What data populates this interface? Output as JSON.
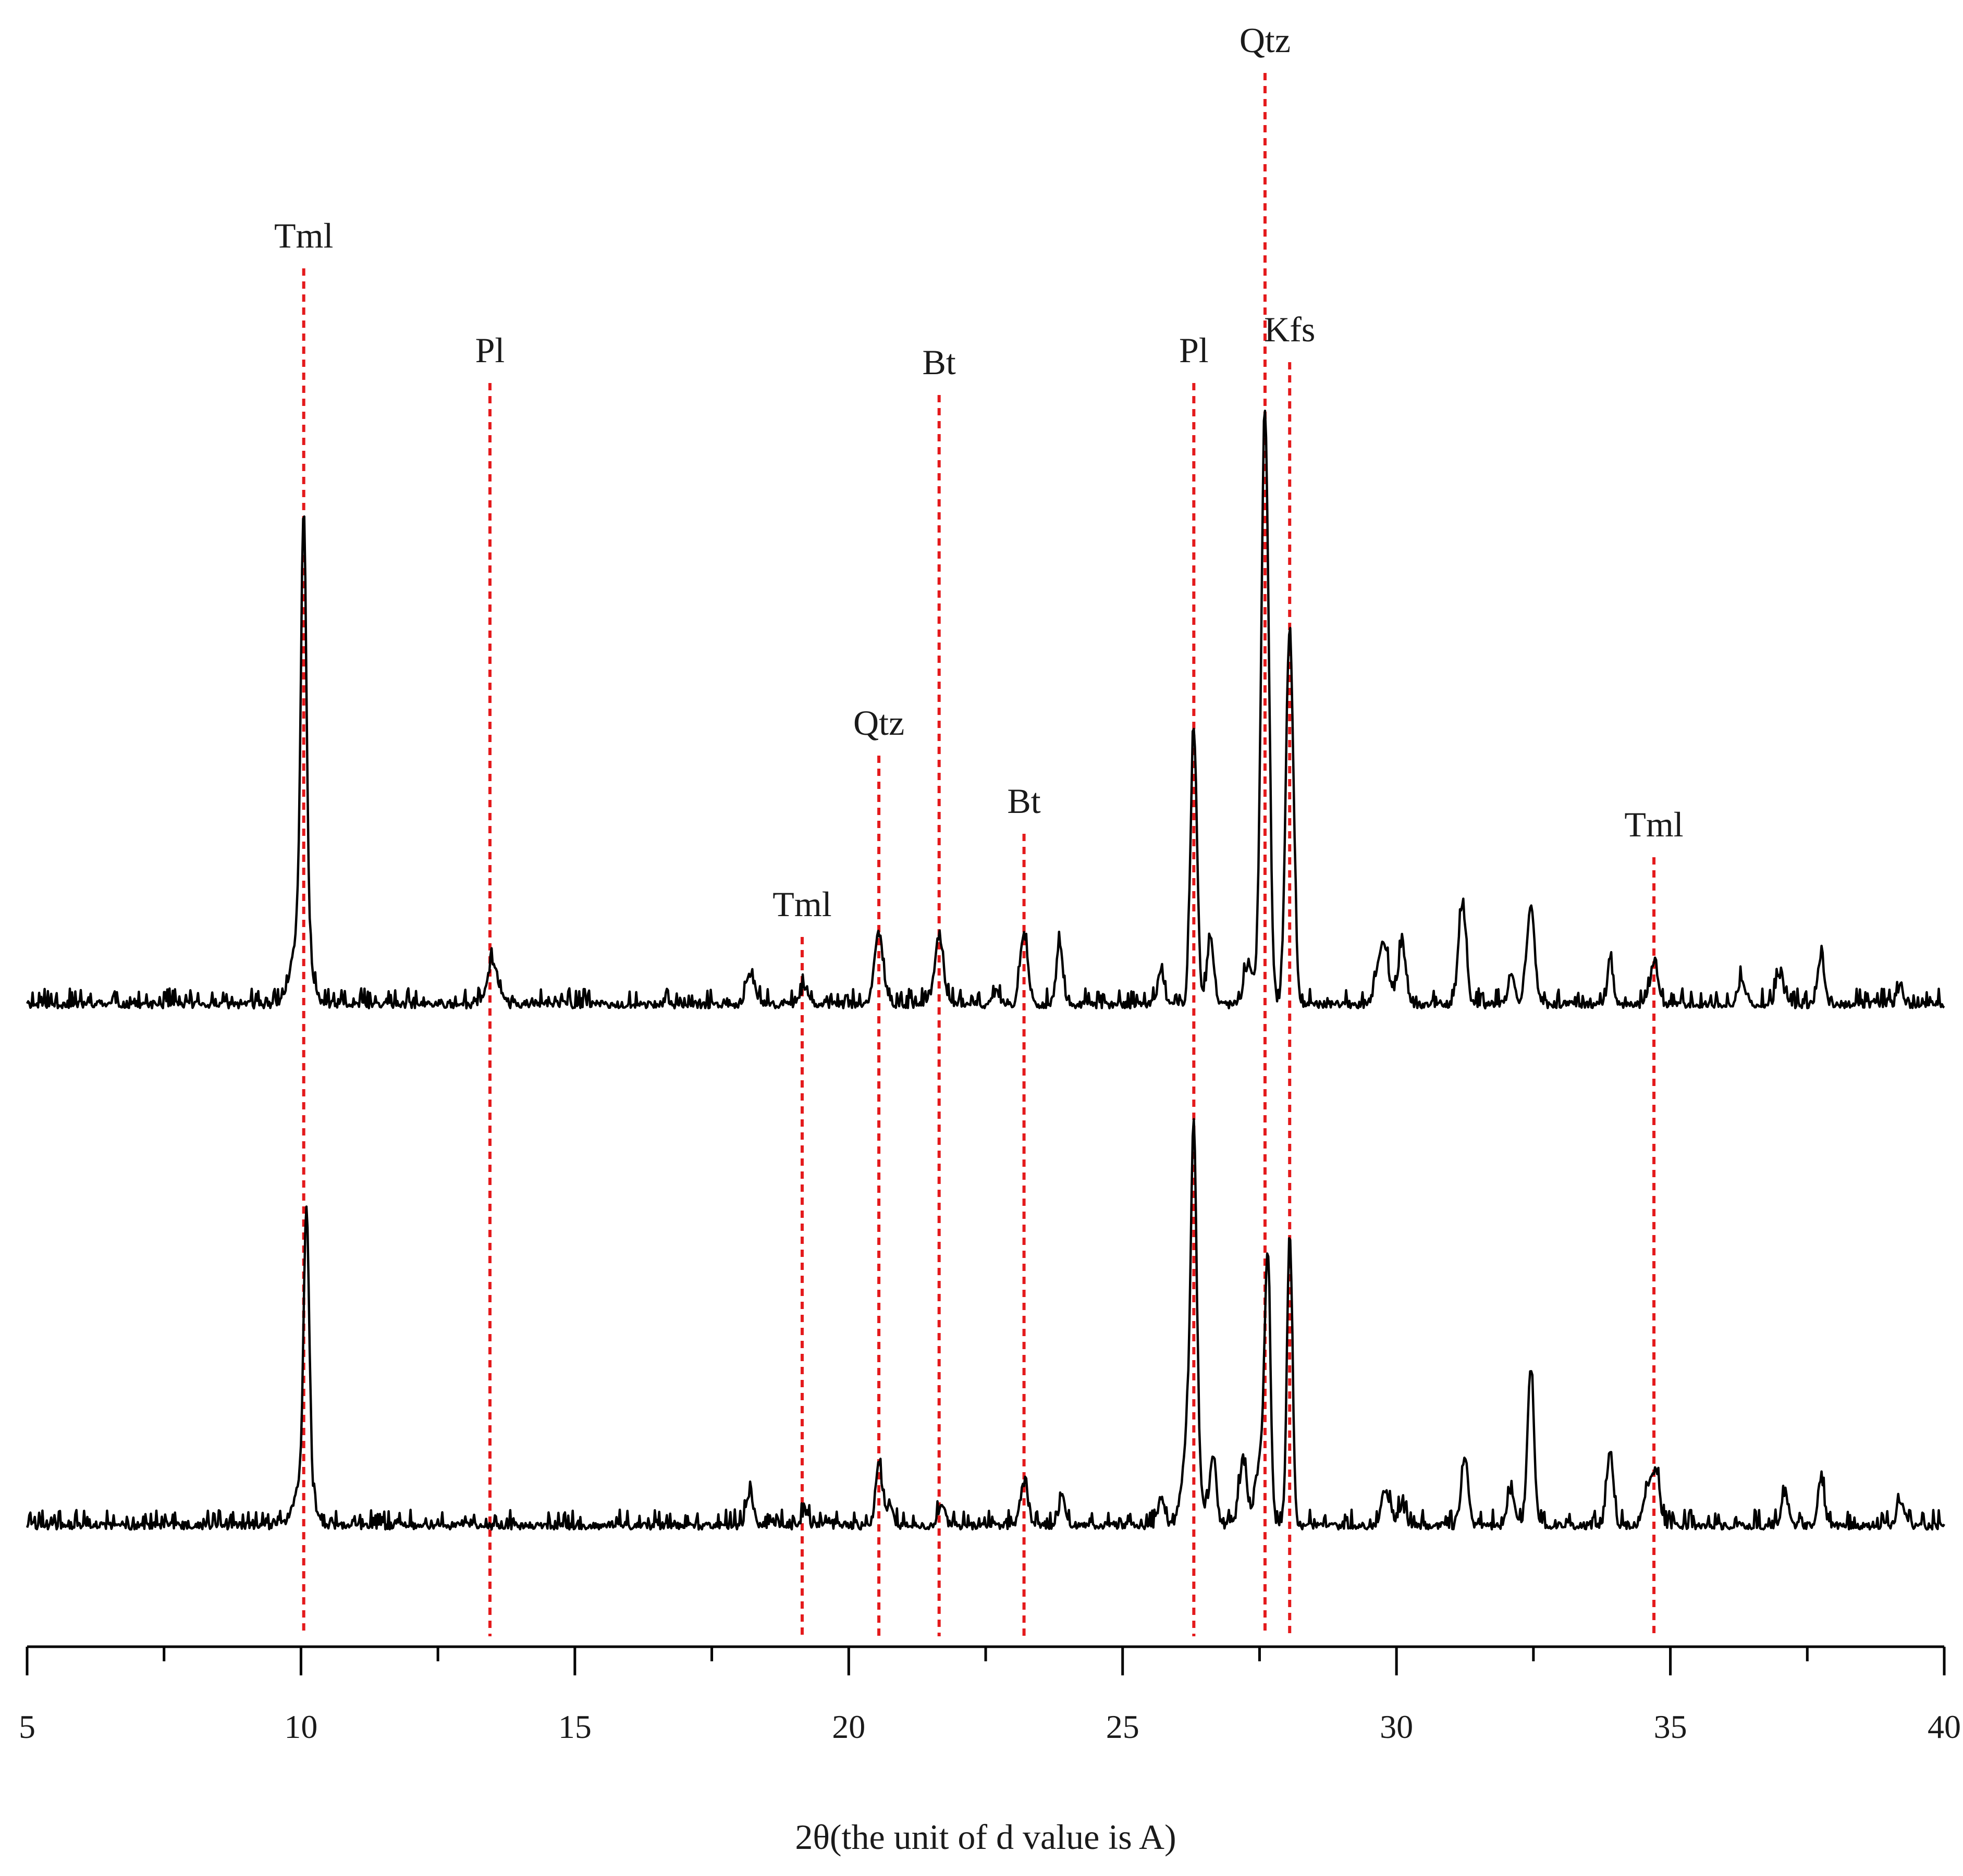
{
  "chart_data": {
    "type": "line",
    "xlabel": "2θ(the unit of d value is A)",
    "xlim": [
      5,
      40
    ],
    "x_ticks": [
      5,
      10,
      15,
      20,
      25,
      30,
      35,
      40
    ],
    "x_minor_step": 2.5,
    "grid": false,
    "colors": {
      "trace": "#000000",
      "reference": "#e41a1c",
      "axis": "#000000"
    },
    "reference_lines": [
      {
        "label": "Tml",
        "x": 10.05,
        "top_trace": true,
        "label_row": 2
      },
      {
        "label": "Pl",
        "x": 13.45,
        "top_trace": true,
        "label_row": 3
      },
      {
        "label": "Tml",
        "x": 19.15,
        "top_trace": true,
        "label_row": 7
      },
      {
        "label": "Qtz",
        "x": 20.55,
        "top_trace": true,
        "label_row": 6
      },
      {
        "label": "Bt",
        "x": 21.65,
        "top_trace": true,
        "label_row": 4
      },
      {
        "label": "Bt",
        "x": 23.2,
        "top_trace": true,
        "label_row": 8
      },
      {
        "label": "Pl",
        "x": 26.3,
        "top_trace": true,
        "label_row": 3
      },
      {
        "label": "Qtz",
        "x": 27.6,
        "top_trace": true,
        "label_row": 1
      },
      {
        "label": "Kfs",
        "x": 28.05,
        "top_trace": true,
        "label_row": 5
      },
      {
        "label": "Tml",
        "x": 34.7,
        "top_trace": true,
        "label_row": 9
      }
    ],
    "series": [
      {
        "background": 0.0,
        "noise": 3.0,
        "seed": 11,
        "peaks": [
          [
            10.05,
            100,
            0.05
          ],
          [
            10.0,
            20,
            0.15
          ],
          [
            13.5,
            10,
            0.1
          ],
          [
            18.2,
            7,
            0.08
          ],
          [
            19.2,
            4,
            0.08
          ],
          [
            20.55,
            17,
            0.08
          ],
          [
            21.65,
            16,
            0.08
          ],
          [
            22.7,
            3,
            0.06
          ],
          [
            23.2,
            17,
            0.07
          ],
          [
            23.85,
            14,
            0.06
          ],
          [
            25.7,
            8,
            0.06
          ],
          [
            26.3,
            66,
            0.06
          ],
          [
            26.6,
            16,
            0.06
          ],
          [
            27.3,
            10,
            0.08
          ],
          [
            27.6,
            142,
            0.07
          ],
          [
            28.05,
            90,
            0.07
          ],
          [
            29.75,
            15,
            0.1
          ],
          [
            30.1,
            14,
            0.07
          ],
          [
            31.2,
            24,
            0.07
          ],
          [
            32.1,
            8,
            0.06
          ],
          [
            32.45,
            24,
            0.07
          ],
          [
            33.9,
            11,
            0.05
          ],
          [
            34.7,
            10,
            0.07
          ],
          [
            36.3,
            6,
            0.07
          ],
          [
            37.0,
            7,
            0.07
          ],
          [
            37.75,
            12,
            0.06
          ],
          [
            39.2,
            5,
            0.05
          ]
        ]
      },
      {
        "background": 0.0,
        "noise": 3.0,
        "seed": 29,
        "peaks": [
          [
            10.1,
            65,
            0.05
          ],
          [
            10.05,
            12,
            0.15
          ],
          [
            18.2,
            7,
            0.07
          ],
          [
            19.2,
            3,
            0.06
          ],
          [
            20.55,
            15,
            0.06
          ],
          [
            20.75,
            5,
            0.06
          ],
          [
            21.7,
            5,
            0.06
          ],
          [
            23.2,
            10,
            0.07
          ],
          [
            23.9,
            7,
            0.06
          ],
          [
            25.7,
            6,
            0.06
          ],
          [
            26.3,
            70,
            0.05
          ],
          [
            26.25,
            30,
            0.12
          ],
          [
            26.65,
            17,
            0.06
          ],
          [
            27.2,
            16,
            0.07
          ],
          [
            27.65,
            55,
            0.05
          ],
          [
            27.55,
            18,
            0.1
          ],
          [
            28.05,
            70,
            0.05
          ],
          [
            29.8,
            8,
            0.08
          ],
          [
            30.1,
            5,
            0.06
          ],
          [
            31.25,
            17,
            0.06
          ],
          [
            32.1,
            8,
            0.07
          ],
          [
            32.45,
            37,
            0.06
          ],
          [
            33.9,
            18,
            0.06
          ],
          [
            34.6,
            10,
            0.08
          ],
          [
            34.75,
            12,
            0.06
          ],
          [
            37.1,
            7,
            0.07
          ],
          [
            37.75,
            11,
            0.06
          ],
          [
            39.2,
            6,
            0.06
          ]
        ]
      }
    ]
  }
}
